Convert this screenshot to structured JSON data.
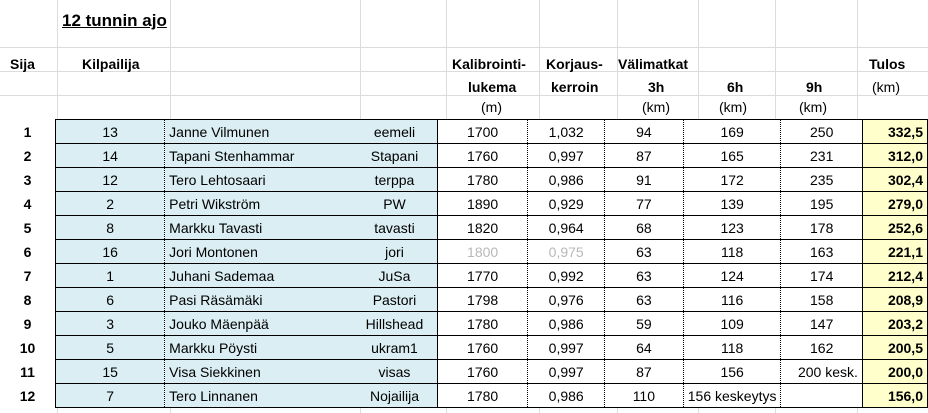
{
  "title": "12 tunnin ajo",
  "headers": {
    "sija": "Sija",
    "kilpailija": "Kilpailija",
    "kalibrointi_1": "Kalibrointi-",
    "kalibrointi_2": "lukema",
    "kalibrointi_unit": "(m)",
    "korjaus_1": "Korjaus-",
    "korjaus_2": "kerroin",
    "valimatkat": "Välimatkat",
    "h3": "3h",
    "h3_unit": "(km)",
    "h6": "6h",
    "h6_unit": "(km)",
    "h9": "9h",
    "h9_unit": "(km)",
    "tulos": "Tulos",
    "tulos_unit": "(km)"
  },
  "rows": [
    {
      "rank": "1",
      "num": "13",
      "name": "Janne Vilmunen",
      "nick": "eemeli",
      "kal": "1700",
      "kor": "1,032",
      "h3": "94",
      "h6": "169",
      "h9": "250",
      "tulos": "332,5"
    },
    {
      "rank": "2",
      "num": "14",
      "name": "Tapani Stenhammar",
      "nick": "Stapani",
      "kal": "1760",
      "kor": "0,997",
      "h3": "87",
      "h6": "165",
      "h9": "231",
      "tulos": "312,0"
    },
    {
      "rank": "3",
      "num": "12",
      "name": "Tero Lehtosaari",
      "nick": "terppa",
      "kal": "1780",
      "kor": "0,986",
      "h3": "91",
      "h6": "172",
      "h9": "235",
      "tulos": "302,4"
    },
    {
      "rank": "4",
      "num": "2",
      "name": "Petri Wikström",
      "nick": "PW",
      "kal": "1890",
      "kor": "0,929",
      "h3": "77",
      "h6": "139",
      "h9": "195",
      "tulos": "279,0"
    },
    {
      "rank": "5",
      "num": "8",
      "name": "Markku Tavasti",
      "nick": "tavasti",
      "kal": "1820",
      "kor": "0,964",
      "h3": "68",
      "h6": "123",
      "h9": "178",
      "tulos": "252,6"
    },
    {
      "rank": "6",
      "num": "16",
      "name": "Jori Montonen",
      "nick": "jori",
      "kal": "1800",
      "kor": "0,975",
      "h3": "63",
      "h6": "118",
      "h9": "163",
      "tulos": "221,1",
      "faded": true
    },
    {
      "rank": "7",
      "num": "1",
      "name": "Juhani Sademaa",
      "nick": "JuSa",
      "kal": "1770",
      "kor": "0,992",
      "h3": "63",
      "h6": "124",
      "h9": "174",
      "tulos": "212,4"
    },
    {
      "rank": "8",
      "num": "6",
      "name": "Pasi Räsämäki",
      "nick": "Pastori",
      "kal": "1798",
      "kor": "0,976",
      "h3": "63",
      "h6": "116",
      "h9": "158",
      "tulos": "208,9"
    },
    {
      "rank": "9",
      "num": "3",
      "name": "Jouko Mäenpää",
      "nick": "Hillshead",
      "kal": "1780",
      "kor": "0,986",
      "h3": "59",
      "h6": "109",
      "h9": "147",
      "tulos": "203,2"
    },
    {
      "rank": "10",
      "num": "5",
      "name": "Markku Pöysti",
      "nick": "ukram1",
      "kal": "1760",
      "kor": "0,997",
      "h3": "64",
      "h6": "118",
      "h9": "162",
      "tulos": "200,5"
    },
    {
      "rank": "11",
      "num": "15",
      "name": "Visa Siekkinen",
      "nick": "visas",
      "kal": "1760",
      "kor": "0,997",
      "h3": "87",
      "h6": "156",
      "h9": "200 kesk.",
      "tulos": "200,0"
    },
    {
      "rank": "12",
      "num": "7",
      "name": "Tero Linnanen",
      "nick": "Nojailija",
      "kal": "1780",
      "kor": "0,986",
      "h3": "110",
      "h6": "156 keskeytys",
      "h9": "",
      "tulos": "156,0"
    }
  ]
}
